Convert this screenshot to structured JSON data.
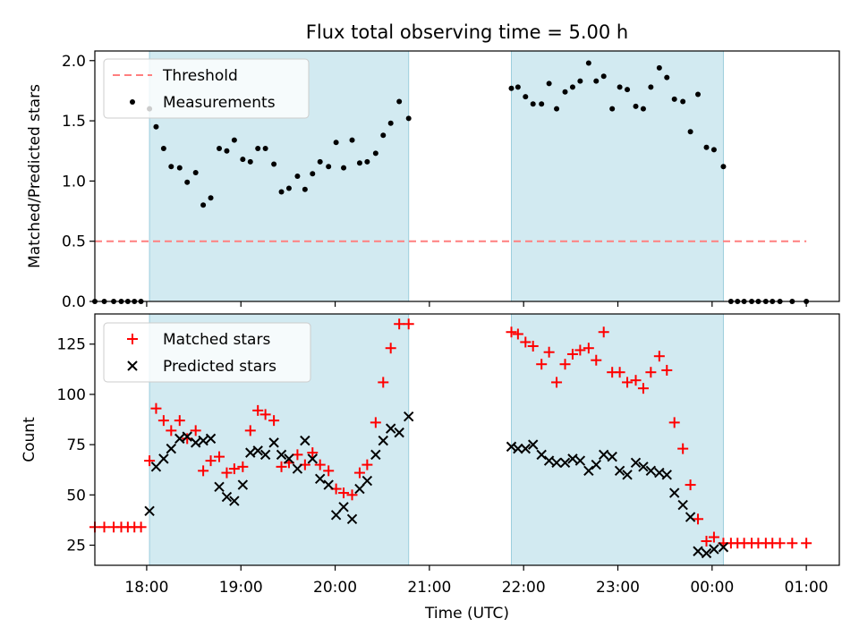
{
  "title": "Flux total observing time = 5.00 h",
  "shading_color": "#add8e6",
  "chart_data": [
    {
      "type": "scatter",
      "ylabel": "Matched/Predicted stars",
      "xlabel": "",
      "xlim": [
        -0.55,
        7.35
      ],
      "ylim": [
        0,
        2.08
      ],
      "yticks": [
        "0.0",
        "0.5",
        "1.0",
        "1.5",
        "2.0"
      ],
      "ytick_values": [
        0,
        0.5,
        1.0,
        1.5,
        2.0
      ],
      "legend": {
        "placement": "top-left",
        "entries": [
          "Threshold",
          "Measurements"
        ]
      },
      "shaded_intervals": [
        [
          0.03,
          2.78
        ],
        [
          3.87,
          6.12
        ]
      ],
      "threshold": {
        "name": "Threshold",
        "y": 0.5,
        "x": [
          -0.55,
          7.0
        ],
        "color": "#ff7f7f"
      },
      "measurements": {
        "name": "Measurements",
        "color": "#000000",
        "x": [
          -0.55,
          -0.45,
          -0.35,
          -0.27,
          -0.2,
          -0.13,
          -0.06,
          0.03,
          0.1,
          0.18,
          0.26,
          0.35,
          0.43,
          0.52,
          0.6,
          0.68,
          0.77,
          0.85,
          0.93,
          1.02,
          1.1,
          1.18,
          1.26,
          1.35,
          1.43,
          1.51,
          1.6,
          1.68,
          1.76,
          1.84,
          1.93,
          2.01,
          2.09,
          2.18,
          2.26,
          2.34,
          2.43,
          2.51,
          2.59,
          2.68,
          2.78,
          3.87,
          3.94,
          4.02,
          4.1,
          4.19,
          4.27,
          4.35,
          4.44,
          4.52,
          4.6,
          4.69,
          4.77,
          4.85,
          4.94,
          5.02,
          5.1,
          5.19,
          5.27,
          5.35,
          5.44,
          5.52,
          5.6,
          5.69,
          5.77,
          5.85,
          5.94,
          6.02,
          6.12,
          6.2,
          6.27,
          6.34,
          6.42,
          6.49,
          6.57,
          6.64,
          6.72,
          6.85,
          7.0
        ],
        "y": [
          0,
          0,
          0,
          0,
          0,
          0,
          0,
          1.6,
          1.45,
          1.27,
          1.12,
          1.11,
          0.99,
          1.07,
          0.8,
          0.86,
          1.27,
          1.25,
          1.34,
          1.18,
          1.16,
          1.27,
          1.27,
          1.14,
          0.91,
          0.94,
          1.04,
          0.93,
          1.06,
          1.16,
          1.12,
          1.32,
          1.11,
          1.34,
          1.15,
          1.16,
          1.23,
          1.38,
          1.48,
          1.66,
          1.52,
          1.77,
          1.78,
          1.7,
          1.64,
          1.64,
          1.81,
          1.6,
          1.74,
          1.78,
          1.83,
          1.98,
          1.83,
          1.87,
          1.6,
          1.78,
          1.76,
          1.62,
          1.6,
          1.78,
          1.94,
          1.86,
          1.68,
          1.66,
          1.41,
          1.72,
          1.28,
          1.26,
          1.12,
          0,
          0,
          0,
          0,
          0,
          0,
          0,
          0,
          0,
          0
        ]
      }
    },
    {
      "type": "scatter",
      "ylabel": "Count",
      "xlabel": "Time (UTC)",
      "xlim": [
        -0.55,
        7.35
      ],
      "ylim": [
        15,
        140
      ],
      "yticks": [
        "25",
        "50",
        "75",
        "100",
        "125"
      ],
      "ytick_values": [
        25,
        50,
        75,
        100,
        125
      ],
      "xticks": [
        "18:00",
        "19:00",
        "20:00",
        "21:00",
        "22:00",
        "23:00",
        "00:00",
        "01:00"
      ],
      "xtick_values": [
        0,
        1,
        2,
        3,
        4,
        5,
        6,
        7
      ],
      "legend": {
        "placement": "top-left",
        "entries": [
          "Matched stars",
          "Predicted stars"
        ]
      },
      "shaded_intervals": [
        [
          0.03,
          2.78
        ],
        [
          3.87,
          6.12
        ]
      ],
      "series": [
        {
          "name": "Matched stars",
          "marker": "plus",
          "color": "#ff0000",
          "x": [
            -0.55,
            -0.45,
            -0.35,
            -0.27,
            -0.2,
            -0.13,
            -0.06,
            0.03,
            0.1,
            0.18,
            0.26,
            0.35,
            0.43,
            0.52,
            0.6,
            0.68,
            0.77,
            0.85,
            0.93,
            1.02,
            1.1,
            1.18,
            1.26,
            1.35,
            1.43,
            1.51,
            1.6,
            1.68,
            1.76,
            1.84,
            1.93,
            2.01,
            2.09,
            2.18,
            2.26,
            2.34,
            2.43,
            2.51,
            2.59,
            2.68,
            2.78,
            3.87,
            3.94,
            4.02,
            4.1,
            4.19,
            4.27,
            4.35,
            4.44,
            4.52,
            4.6,
            4.69,
            4.77,
            4.85,
            4.94,
            5.02,
            5.1,
            5.19,
            5.27,
            5.35,
            5.44,
            5.52,
            5.6,
            5.69,
            5.77,
            5.85,
            5.94,
            6.02,
            6.12,
            6.2,
            6.27,
            6.34,
            6.42,
            6.49,
            6.57,
            6.64,
            6.72,
            6.85,
            7.0
          ],
          "y": [
            34,
            34,
            34,
            34,
            34,
            34,
            34,
            67,
            93,
            87,
            82,
            87,
            78,
            82,
            62,
            67,
            69,
            61,
            63,
            64,
            82,
            92,
            90,
            87,
            64,
            66,
            70,
            65,
            71,
            65,
            62,
            53,
            51,
            50,
            61,
            65,
            86,
            106,
            123,
            135,
            135,
            131,
            130,
            126,
            124,
            115,
            121,
            106,
            115,
            120,
            122,
            123,
            117,
            131,
            111,
            111,
            106,
            107,
            103,
            111,
            119,
            112,
            86,
            73,
            55,
            38,
            27,
            29,
            26,
            26,
            26,
            26,
            26,
            26,
            26,
            26,
            26,
            26,
            26
          ]
        },
        {
          "name": "Predicted stars",
          "marker": "x",
          "color": "#000000",
          "x": [
            0.03,
            0.1,
            0.18,
            0.26,
            0.35,
            0.43,
            0.52,
            0.6,
            0.68,
            0.77,
            0.85,
            0.93,
            1.02,
            1.1,
            1.18,
            1.26,
            1.35,
            1.43,
            1.51,
            1.6,
            1.68,
            1.76,
            1.84,
            1.93,
            2.01,
            2.09,
            2.18,
            2.26,
            2.34,
            2.43,
            2.51,
            2.59,
            2.68,
            2.78,
            3.87,
            3.94,
            4.02,
            4.1,
            4.19,
            4.27,
            4.35,
            4.44,
            4.52,
            4.6,
            4.69,
            4.77,
            4.85,
            4.94,
            5.02,
            5.1,
            5.19,
            5.27,
            5.35,
            5.44,
            5.52,
            5.6,
            5.69,
            5.77,
            5.85,
            5.94,
            6.02,
            6.12
          ],
          "y": [
            42,
            64,
            68,
            73,
            78,
            79,
            76,
            77,
            78,
            54,
            49,
            47,
            55,
            71,
            72,
            70,
            76,
            70,
            68,
            63,
            77,
            68,
            58,
            55,
            40,
            44,
            38,
            53,
            57,
            70,
            77,
            83,
            81,
            89,
            74,
            73,
            73,
            75,
            70,
            67,
            66,
            66,
            68,
            67,
            62,
            65,
            70,
            69,
            62,
            60,
            66,
            64,
            62,
            61,
            60,
            51,
            45,
            39,
            22,
            21,
            23,
            24
          ]
        }
      ]
    }
  ]
}
